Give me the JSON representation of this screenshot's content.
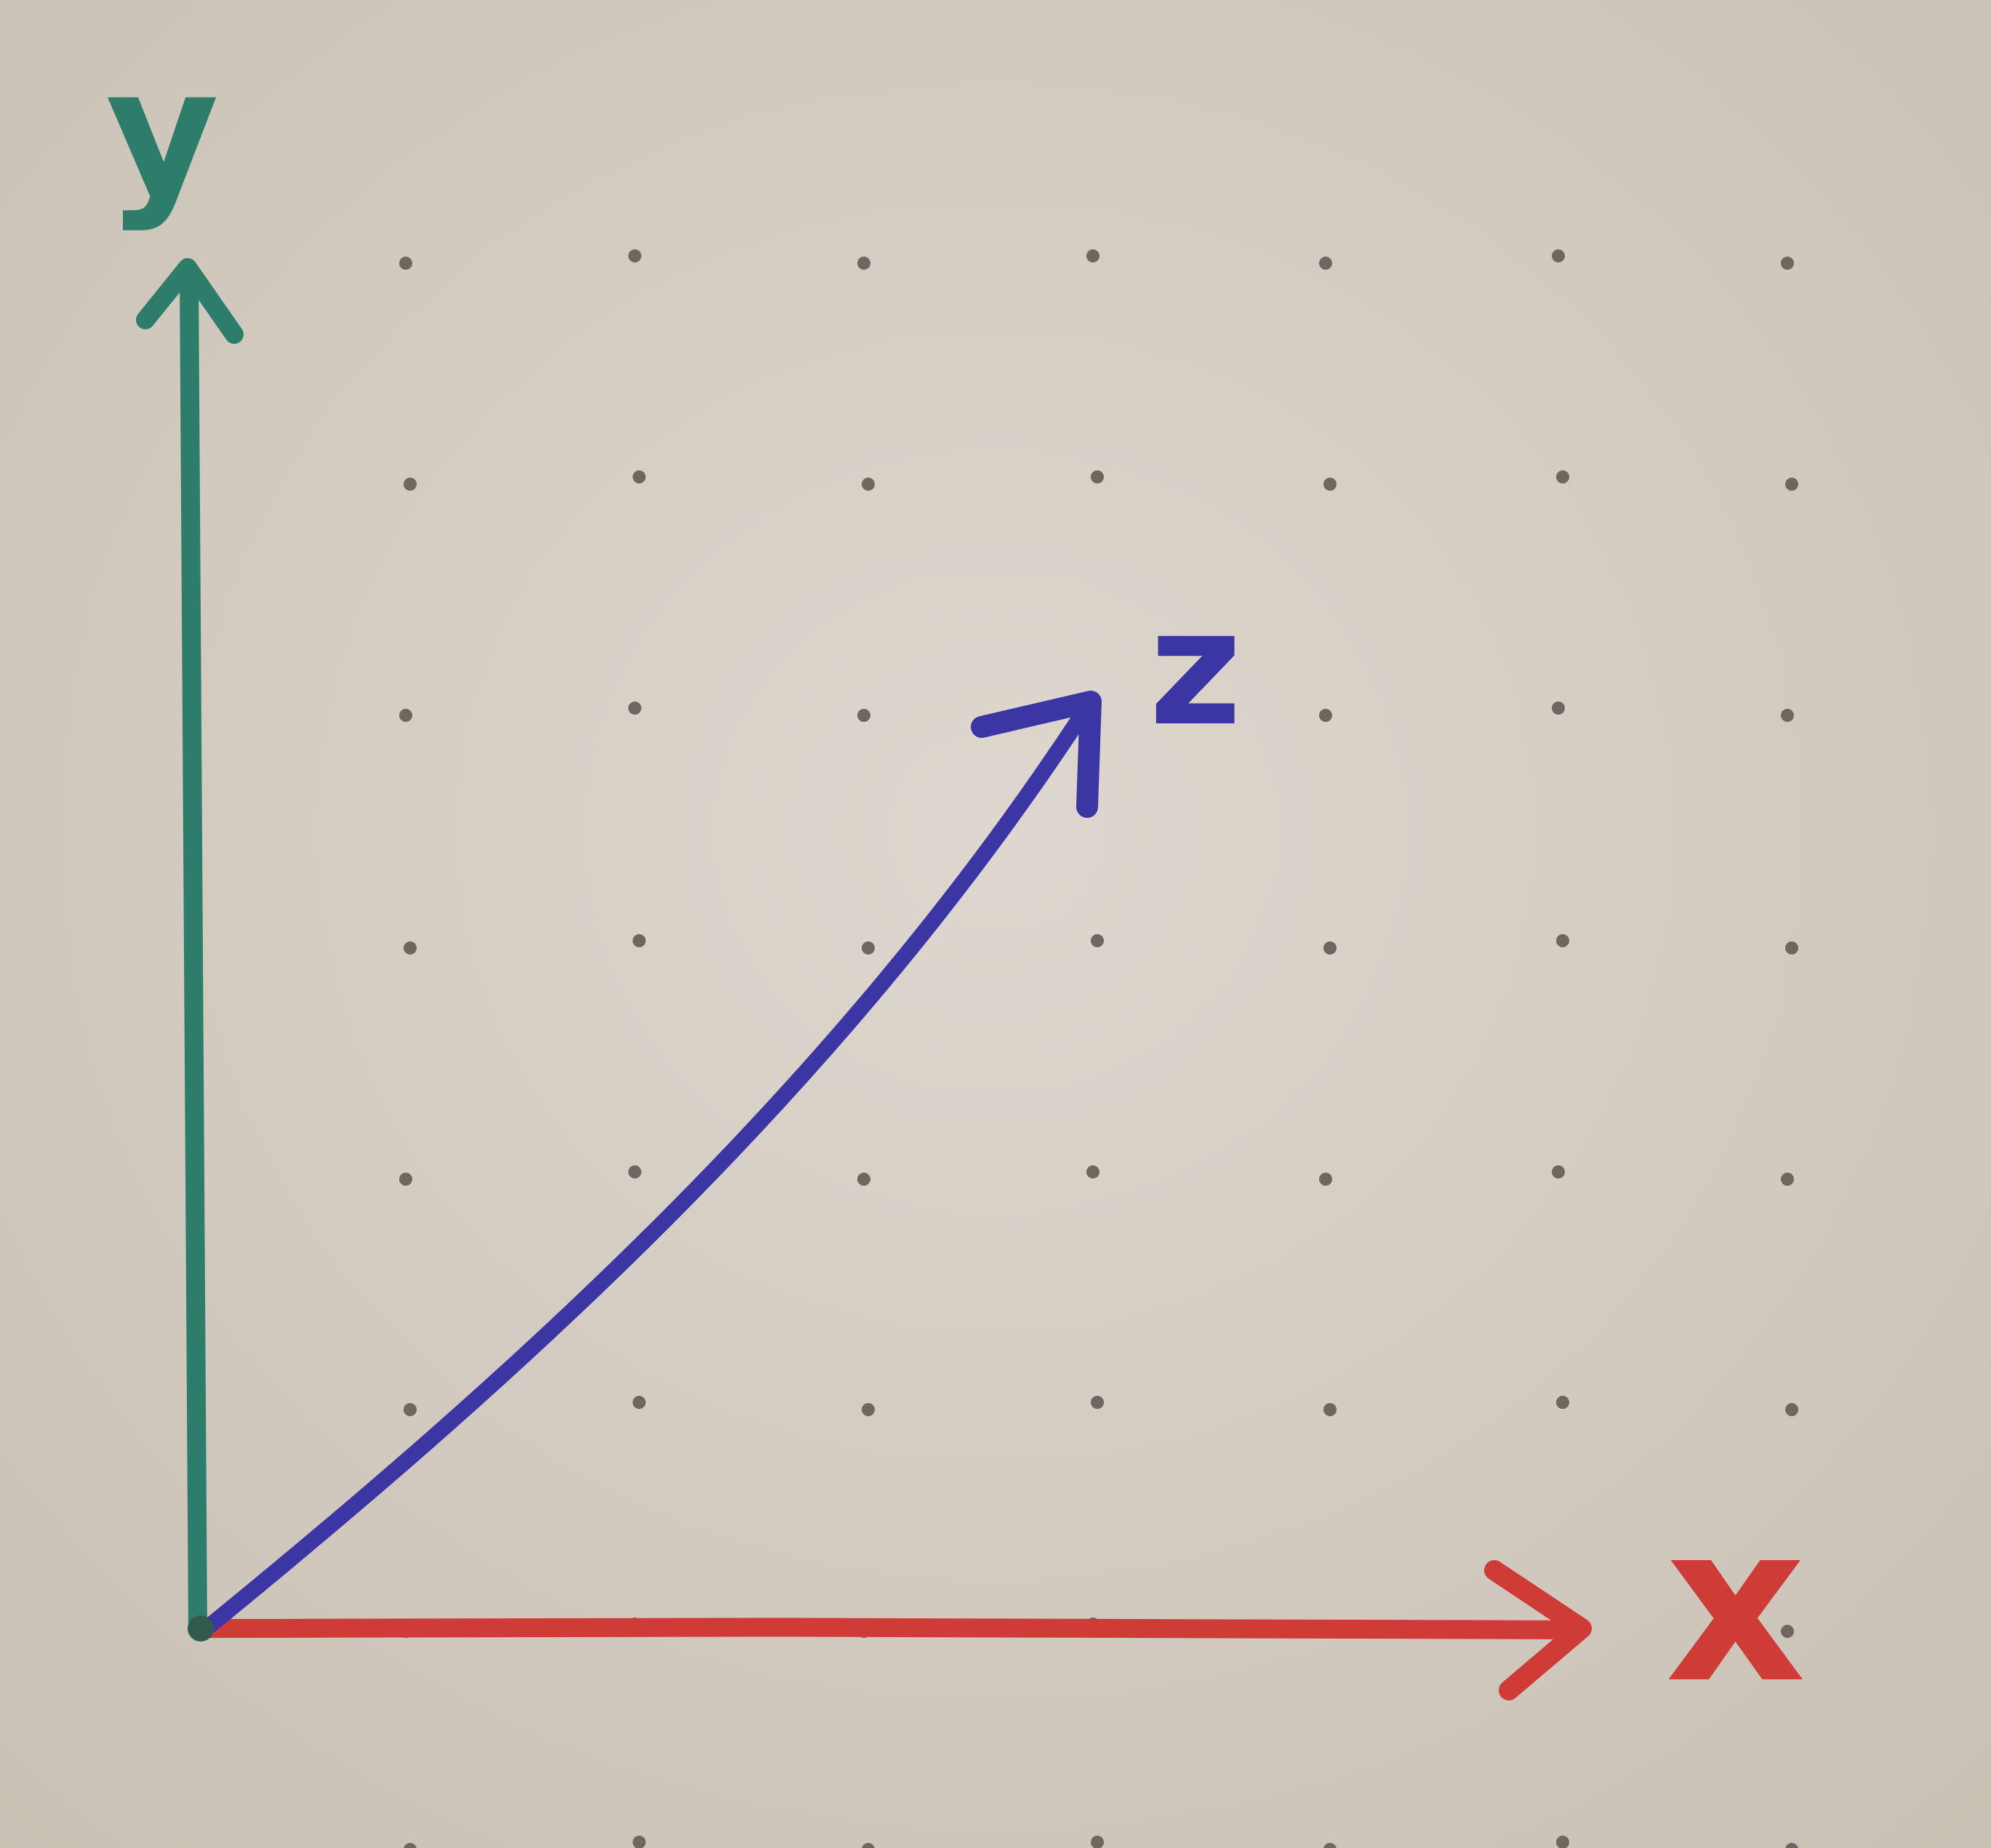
{
  "diagram": {
    "paper_color": "#d6cfc6",
    "dot_color": "#6e6760",
    "axes": {
      "y": {
        "label": "y",
        "color": "#2e7d6b"
      },
      "x": {
        "label": "x",
        "color": "#cf3b37"
      },
      "z": {
        "label": "z",
        "color": "#3b36a4"
      }
    }
  }
}
